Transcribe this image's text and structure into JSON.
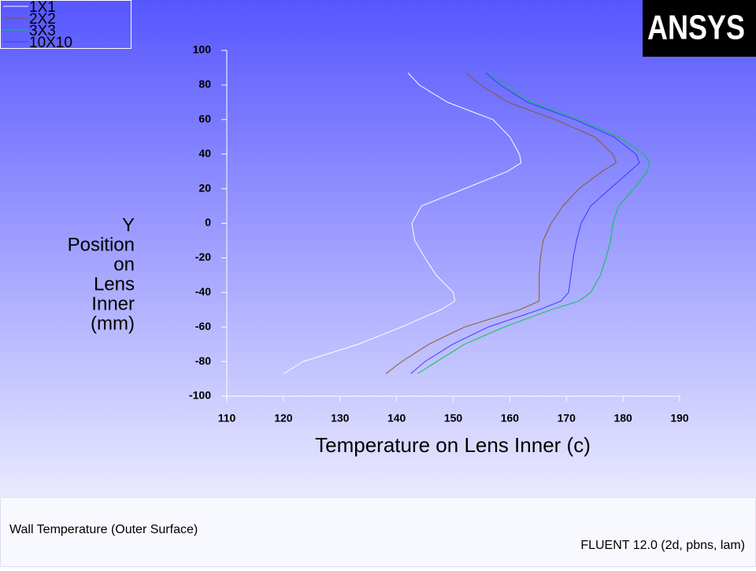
{
  "chart_data": {
    "type": "line",
    "xlabel": "Temperature on Lens Inner (c)",
    "ylabel": [
      "Y",
      "Position",
      "on",
      "Lens",
      "Inner",
      "(mm)"
    ],
    "xlim": [
      110,
      190
    ],
    "ylim": [
      -100,
      100
    ],
    "xticks": [
      110,
      120,
      130,
      140,
      150,
      160,
      170,
      180,
      190
    ],
    "yticks": [
      -100,
      -80,
      -60,
      -40,
      -20,
      0,
      20,
      40,
      60,
      80,
      100
    ],
    "legend": "top-left",
    "series": [
      {
        "name": "1X1",
        "color": "#ffffff",
        "x": [
          142,
          144,
          149,
          157,
          160,
          161.7,
          162,
          159.6,
          152,
          144.4,
          142.7,
          143.2,
          145,
          147,
          150,
          150.3,
          147.8,
          140.9,
          133.2,
          123.5,
          120
        ],
        "values": [
          87,
          80,
          70,
          60,
          50,
          40,
          35,
          30,
          20,
          10,
          0,
          -10,
          -20,
          -30,
          -40,
          -45,
          -50,
          -60,
          -70,
          -80,
          -87
        ]
      },
      {
        "name": "2X2",
        "color": "#8b5a2b",
        "x": [
          152.3,
          154.8,
          159.7,
          168,
          175,
          178.2,
          178.8,
          176.3,
          172.2,
          169.4,
          167.3,
          165.9,
          165.4,
          165.2,
          165.2,
          165.2,
          161.7,
          152,
          145.7,
          140.9,
          138.1
        ],
        "values": [
          87,
          80,
          70,
          60,
          50,
          40,
          35,
          30,
          20,
          10,
          0,
          -10,
          -20,
          -30,
          -40,
          -45,
          -50,
          -60,
          -70,
          -80,
          -87
        ]
      },
      {
        "name": "3X3",
        "color": "#00c850",
        "x": [
          156.2,
          159,
          163.8,
          172.2,
          179.2,
          183.7,
          184.7,
          184.3,
          181.9,
          179.2,
          178.2,
          177.8,
          177,
          176,
          174.3,
          172.2,
          167.3,
          159,
          152,
          147.1,
          143.7
        ],
        "values": [
          87,
          80,
          70,
          60,
          50,
          40,
          35,
          30,
          20,
          10,
          0,
          -10,
          -20,
          -30,
          -40,
          -45,
          -50,
          -60,
          -70,
          -80,
          -87
        ]
      },
      {
        "name": "10X10",
        "color": "#3a3aff",
        "x": [
          155.8,
          158.3,
          163.1,
          171.5,
          178.4,
          182.3,
          182.9,
          181.2,
          177.7,
          174.3,
          172.6,
          171.8,
          171.2,
          170.8,
          170.4,
          169,
          165.2,
          156.2,
          149.9,
          145,
          142.5
        ],
        "values": [
          87,
          80,
          70,
          60,
          50,
          40,
          35,
          30,
          20,
          10,
          0,
          -10,
          -20,
          -30,
          -40,
          -45,
          -50,
          -60,
          -70,
          -80,
          -87
        ]
      }
    ]
  },
  "logo": "ANSYS",
  "footer": {
    "left": "Wall Temperature (Outer Surface)",
    "right": "FLUENT 12.0 (2d, pbns, lam)"
  }
}
